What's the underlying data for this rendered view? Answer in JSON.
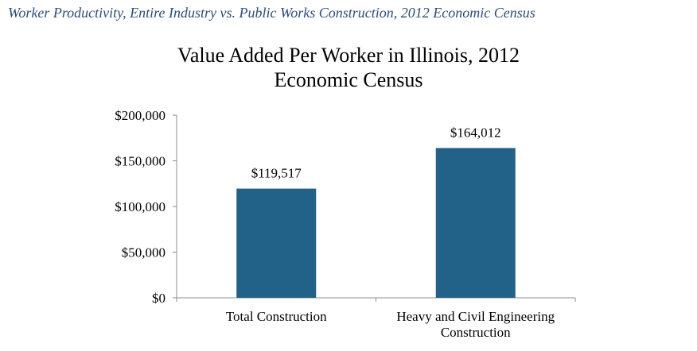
{
  "caption": "Worker Productivity, Entire Industry vs. Public Works Construction, 2012 Economic Census",
  "chart_data": {
    "type": "bar",
    "title_lines": [
      "Value Added Per Worker in Illinois, 2012",
      "Economic Census"
    ],
    "categories": [
      [
        "Total Construction"
      ],
      [
        "Heavy and Civil Engineering",
        "Construction"
      ]
    ],
    "values": [
      119517,
      164012
    ],
    "data_labels": [
      "$119,517",
      "$164,012"
    ],
    "y_ticks": [
      {
        "value": 0,
        "label": "$0"
      },
      {
        "value": 50000,
        "label": "$50,000"
      },
      {
        "value": 100000,
        "label": "$100,000"
      },
      {
        "value": 150000,
        "label": "$150,000"
      },
      {
        "value": 200000,
        "label": "$200,000"
      }
    ],
    "ylim": [
      0,
      200000
    ],
    "grid": false,
    "legend": "none",
    "bar_color": "#236288"
  }
}
